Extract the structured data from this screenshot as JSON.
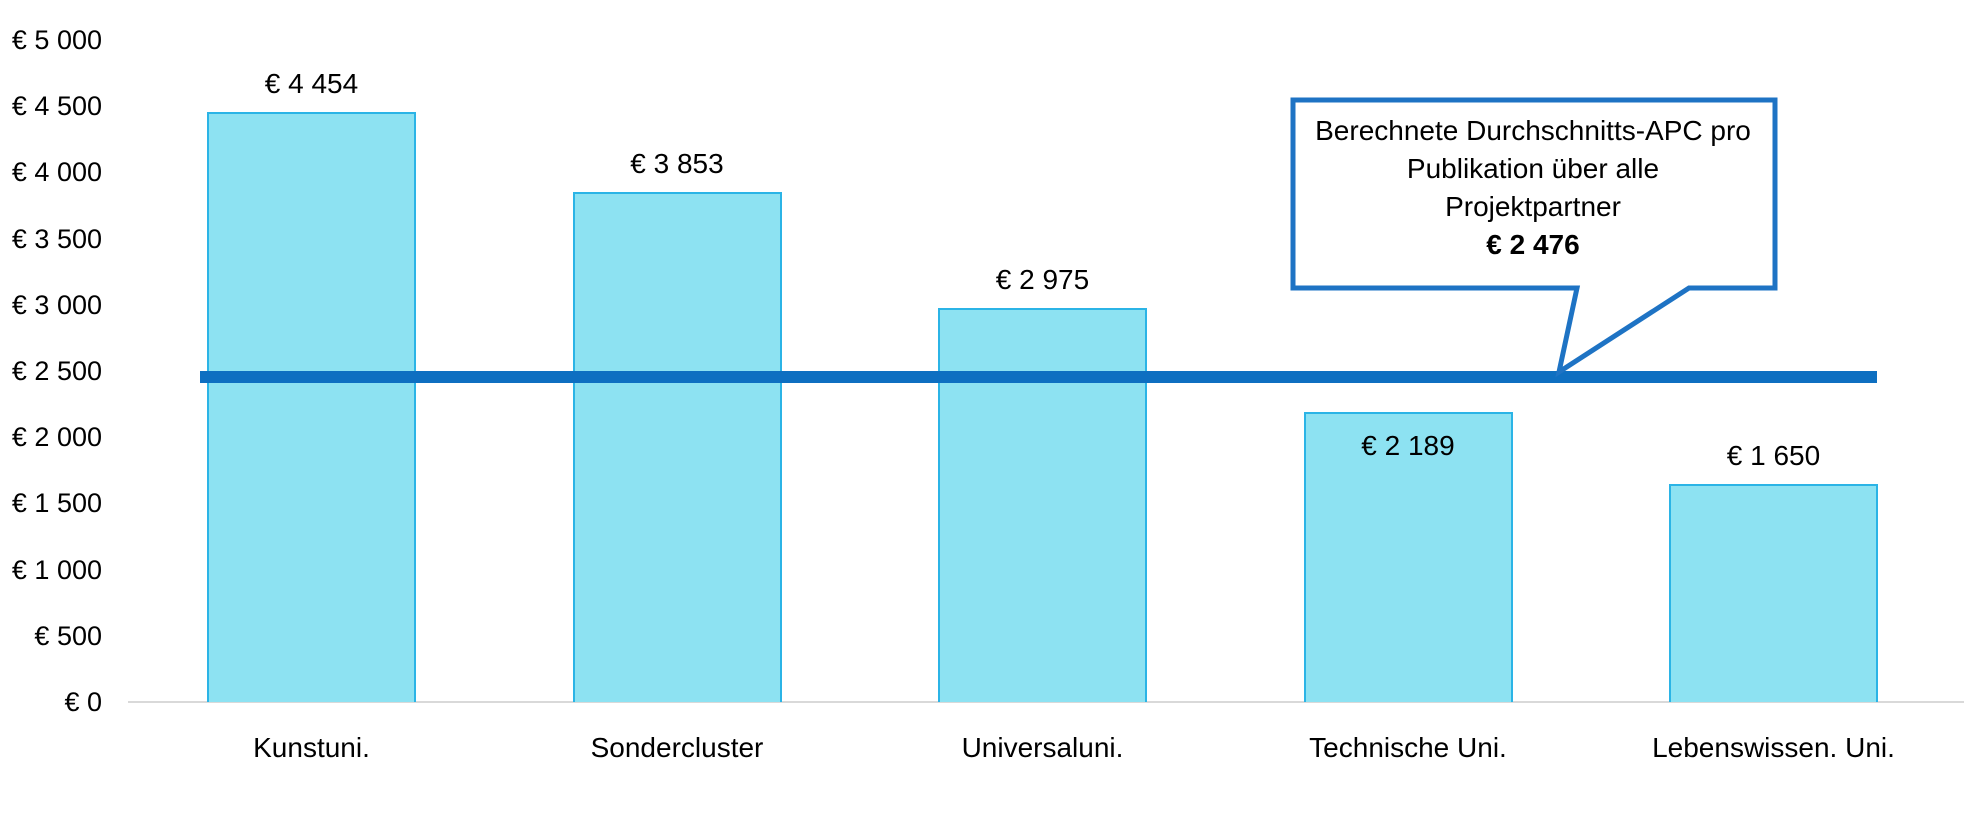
{
  "chart_data": {
    "type": "bar",
    "title": "",
    "xlabel": "",
    "ylabel": "",
    "categories": [
      "Kunstuni.",
      "Sondercluster",
      "Universaluni.",
      "Technische Uni.",
      "Lebenswissen. Uni."
    ],
    "values": [
      4454,
      3853,
      2975,
      2189,
      1650
    ],
    "bar_value_labels": [
      "€ 4 454",
      "€ 3 853",
      "€ 2 975",
      "€ 2 189",
      "€ 1 650"
    ],
    "bar_label_placement": [
      "above",
      "above",
      "above",
      "inside",
      "above"
    ],
    "ylim": [
      0,
      5000
    ],
    "ytick_step": 500,
    "ytick_labels_top_down": [
      "€ 5 000",
      "€ 4 500",
      "€ 4 000",
      "€ 3 500",
      "€ 3 000",
      "€ 2 500",
      "€ 2 000",
      "€ 1 500",
      "€ 1 000",
      "€ 500",
      "€ 0"
    ],
    "grid": "off",
    "legend": "none",
    "average_line": {
      "value": 2476,
      "label": "€ 2 476",
      "color": "#0e6fc1"
    },
    "callout": {
      "lines": [
        "Berechnete  Durchschnitts-APC pro",
        "Publikation über alle",
        "Projektpartner"
      ],
      "value_line": "€ 2 476",
      "border_color": "#1e73c4",
      "fill": "#ffffff"
    },
    "colors": {
      "bar_fill": "#8de2f2",
      "bar_border": "#2bb4e6",
      "axis_line": "#d9d9d9",
      "text": "#000000"
    }
  }
}
